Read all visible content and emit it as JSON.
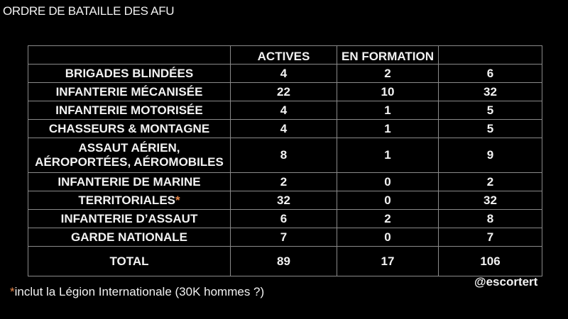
{
  "title": "ORDRE DE BATAILLE DES AFU",
  "table": {
    "headers": [
      "",
      "ACTIVES",
      "EN FORMATION",
      ""
    ],
    "rows": [
      {
        "label": "BRIGADES BLINDÉES",
        "actives": "4",
        "formation": "2",
        "total": "6"
      },
      {
        "label": "INFANTERIE MÉCANISÉE",
        "actives": "22",
        "formation": "10",
        "total": "32"
      },
      {
        "label": "INFANTERIE MOTORISÉE",
        "actives": "4",
        "formation": "1",
        "total": "5"
      },
      {
        "label": "CHASSEURS & MONTAGNE",
        "actives": "4",
        "formation": "1",
        "total": "5"
      },
      {
        "label": "ASSAUT AÉRIEN,",
        "label2": "AÉROPORTÉES, AÉROMOBILES",
        "actives": "8",
        "formation": "1",
        "total": "9"
      },
      {
        "label": "INFANTERIE DE MARINE",
        "actives": "2",
        "formation": "0",
        "total": "2"
      },
      {
        "label": "TERRITORIALES",
        "marker": "*",
        "actives": "32",
        "formation": "0",
        "total": "32"
      },
      {
        "label": "INFANTERIE D’ASSAUT",
        "actives": "6",
        "formation": "2",
        "total": "8"
      },
      {
        "label": "GARDE NATIONALE",
        "actives": "7",
        "formation": "0",
        "total": "7"
      }
    ],
    "total": {
      "label": "TOTAL",
      "actives": "89",
      "formation": "17",
      "total": "106"
    }
  },
  "handle": "@escortert",
  "footnote": {
    "marker": "*",
    "text": "inclut la Légion Internationale (30K hommes ?)"
  },
  "colors": {
    "background": "#000000",
    "text": "#f2f2f2",
    "accent": "#e8874a",
    "grid": "#8a8a8a"
  }
}
